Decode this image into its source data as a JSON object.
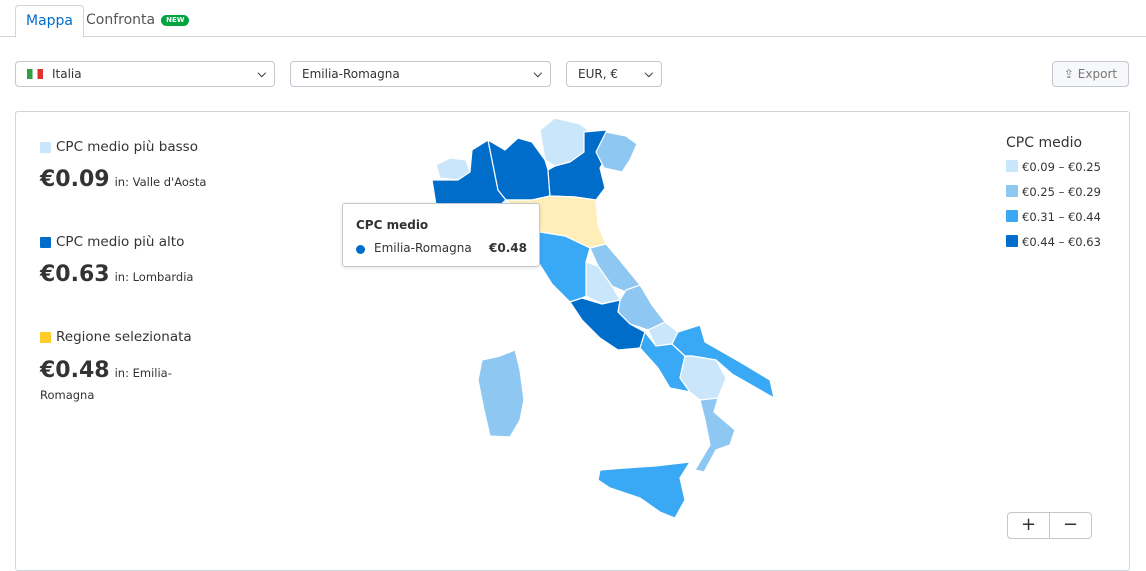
{
  "tabs": [
    {
      "label": "Mappa",
      "active": true
    },
    {
      "label": "Confronta",
      "badge": "NEW"
    }
  ],
  "filters": {
    "country": "Italia",
    "region": "Emilia-Romagna",
    "currency": "EUR, €"
  },
  "export_label": "Export",
  "stats": {
    "lowest": {
      "label": "CPC medio più basso",
      "value": "€0.09",
      "in": "in: Valle d'Aosta",
      "color": "#c9e6fa"
    },
    "highest": {
      "label": "CPC medio più alto",
      "value": "€0.63",
      "in": "in: Lombardia",
      "color": "#006dca"
    },
    "selected": {
      "label": "Regione selezionata",
      "value": "€0.48",
      "in": "in: Emilia-Romagna",
      "color": "#ffcc29"
    }
  },
  "legend": {
    "title": "CPC medio",
    "items": [
      {
        "label": "€0.09 – €0.25",
        "color": "#c9e6fa"
      },
      {
        "label": "€0.25 – €0.29",
        "color": "#8ec8f2"
      },
      {
        "label": "€0.31 – €0.44",
        "color": "#3aa9f5"
      },
      {
        "label": "€0.44 – €0.63",
        "color": "#006dca"
      }
    ]
  },
  "tooltip": {
    "title": "CPC medio",
    "region": "Emilia-Romagna",
    "value": "€0.48"
  },
  "zoom": {
    "in": "+",
    "out": "−"
  }
}
